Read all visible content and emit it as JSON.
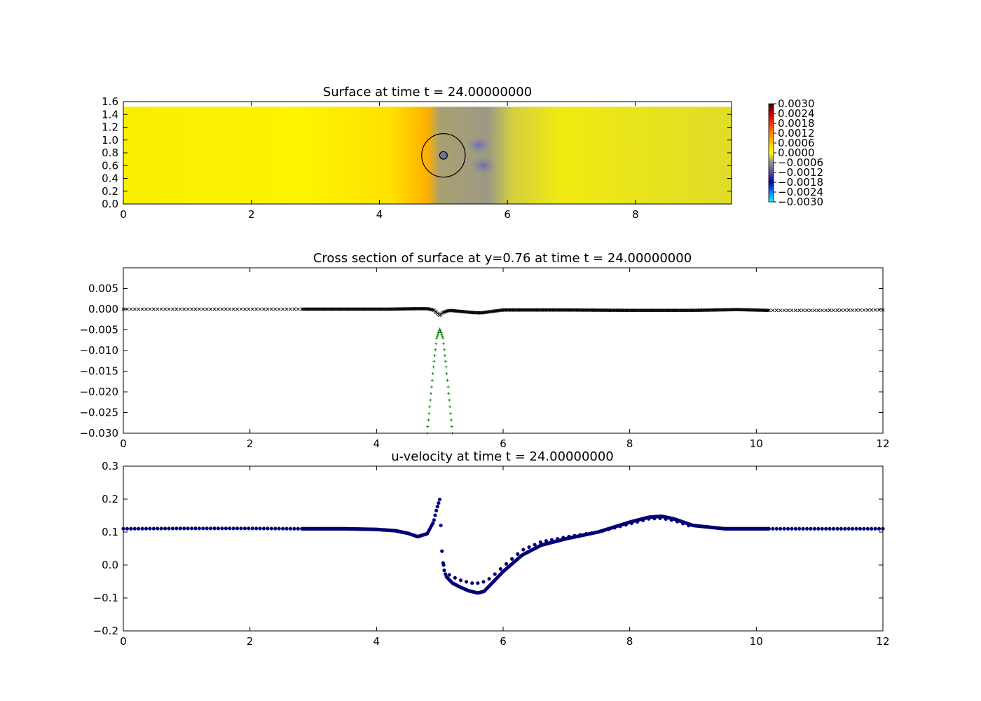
{
  "chart_data": [
    {
      "type": "heatmap",
      "title": "Surface at time t =    24.00000000",
      "xlim": [
        0,
        9.5
      ],
      "ylim": [
        0,
        1.6
      ],
      "x_ticks": [
        "0",
        "2",
        "4",
        "6",
        "8"
      ],
      "y_ticks": [
        "0.0",
        "0.2",
        "0.4",
        "0.6",
        "0.8",
        "1.0",
        "1.2",
        "1.4",
        "1.6"
      ],
      "domain_y_max": 1.52,
      "colorbar": {
        "range": [
          -0.003,
          0.003
        ],
        "ticks": [
          "0.0030",
          "0.0024",
          "0.0018",
          "0.0012",
          "0.0006",
          "0.0000",
          "−0.0006",
          "−0.0012",
          "−0.0018",
          "−0.0024",
          "−0.0030"
        ],
        "colors": [
          "#00ffff",
          "#0080ff",
          "#0000b0",
          "#5050a0",
          "#909090",
          "#ffff00",
          "#ffc800",
          "#ff8000",
          "#ff3000",
          "#c00000",
          "#400000"
        ]
      },
      "annotations": [
        {
          "shape": "circle",
          "center": [
            5.0,
            0.76
          ],
          "radius": 0.34
        },
        {
          "shape": "circle",
          "center": [
            5.0,
            0.76
          ],
          "radius": 0.06
        }
      ],
      "features": [
        {
          "kind": "warm-band",
          "x": [
            4.4,
            5.0
          ]
        },
        {
          "kind": "grey-band",
          "x": [
            5.0,
            6.0
          ]
        },
        {
          "kind": "trough",
          "center": [
            5.55,
            0.92
          ]
        },
        {
          "kind": "trough",
          "center": [
            5.62,
            0.6
          ]
        }
      ],
      "grid": false
    },
    {
      "type": "scatter",
      "title": "Cross section of surface at y=0.76 at time t =    24.00000000",
      "xlim": [
        0,
        12
      ],
      "ylim": [
        -0.03,
        0.01
      ],
      "x_ticks": [
        "0",
        "2",
        "4",
        "6",
        "8",
        "10",
        "12"
      ],
      "y_ticks": [
        "0.005",
        "0.000",
        "−0.005",
        "−0.010",
        "−0.015",
        "−0.020",
        "−0.025",
        "−0.030"
      ],
      "grid": false,
      "series": [
        {
          "marker": "x",
          "color": "#000000",
          "x": [
            0,
            1,
            2,
            2.8,
            3.5,
            4.2,
            4.6,
            4.8,
            4.9,
            5.0,
            5.05,
            5.15,
            5.3,
            5.5,
            5.65,
            5.8,
            6.0,
            7.0,
            8.0,
            9.0,
            9.7,
            10.2,
            11,
            12
          ],
          "y": [
            0.0,
            0.0,
            0.0,
            0.0,
            0.0,
            0.0,
            0.0001,
            0.0001,
            -0.0002,
            -0.0015,
            -0.0008,
            -0.0003,
            -0.0005,
            -0.0008,
            -0.0009,
            -0.0006,
            -0.0002,
            -0.0002,
            -0.0003,
            -0.0003,
            -0.0001,
            -0.0003,
            -0.0003,
            -0.0002
          ]
        },
        {
          "marker": "+",
          "color": "#008000",
          "x": [
            4.8,
            4.85,
            4.9,
            4.95,
            5.0,
            5.05,
            5.1,
            5.15,
            5.2
          ],
          "y": [
            -0.03,
            -0.022,
            -0.014,
            -0.007,
            -0.0048,
            -0.007,
            -0.014,
            -0.022,
            -0.03
          ]
        }
      ]
    },
    {
      "type": "scatter",
      "title": "u-velocity at time t =    24.00000000",
      "xlim": [
        0,
        12
      ],
      "ylim": [
        -0.2,
        0.3
      ],
      "x_ticks": [
        "0",
        "2",
        "4",
        "6",
        "8",
        "10",
        "12"
      ],
      "y_ticks": [
        "0.3",
        "0.2",
        "0.1",
        "0.0",
        "−0.1",
        "−0.2"
      ],
      "grid": false,
      "series": [
        {
          "marker": "o",
          "color": "#00008b",
          "x": [
            0,
            1,
            2,
            2.8,
            3.5,
            4.0,
            4.3,
            4.5,
            4.65,
            4.8,
            4.9,
            4.95,
            5.0,
            5.03,
            5.06,
            5.1,
            5.2,
            5.3,
            5.45,
            5.6,
            5.7,
            5.8,
            6.0,
            6.3,
            6.6,
            7.0,
            7.5,
            8.0,
            8.3,
            8.5,
            8.7,
            9.0,
            9.5,
            10.2,
            11,
            12
          ],
          "y": [
            0.11,
            0.111,
            0.111,
            0.11,
            0.11,
            0.108,
            0.104,
            0.096,
            0.086,
            0.095,
            0.13,
            0.17,
            0.2,
            0.05,
            -0.01,
            -0.035,
            -0.055,
            -0.065,
            -0.078,
            -0.085,
            -0.08,
            -0.06,
            -0.02,
            0.03,
            0.06,
            0.08,
            0.1,
            0.13,
            0.145,
            0.148,
            0.14,
            0.12,
            0.11,
            0.11,
            0.11,
            0.11
          ]
        },
        {
          "marker": "o",
          "color": "#00008b",
          "x": [
            5.06,
            5.15,
            5.3,
            5.5,
            5.65,
            5.8,
            6.0,
            6.3,
            6.6,
            7.0,
            7.5,
            8.0,
            8.3,
            8.5,
            8.7,
            9.0
          ],
          "y": [
            0.0,
            -0.03,
            -0.045,
            -0.055,
            -0.055,
            -0.04,
            -0.005,
            0.045,
            0.07,
            0.085,
            0.1,
            0.125,
            0.14,
            0.142,
            0.135,
            0.115
          ]
        }
      ]
    }
  ]
}
